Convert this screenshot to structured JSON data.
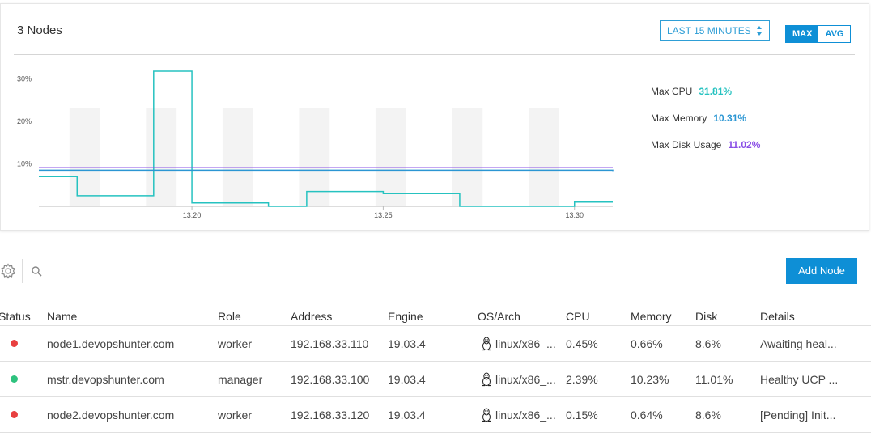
{
  "panel": {
    "title": "3 Nodes",
    "range_select": "LAST 15 MINUTES",
    "toggle": {
      "max": "MAX",
      "avg": "AVG",
      "selected": "MAX"
    }
  },
  "legend": [
    {
      "label": "Max CPU",
      "value": "31.81%",
      "color": "#26c2c0"
    },
    {
      "label": "Max Memory",
      "value": "10.31%",
      "color": "#2b96d3"
    },
    {
      "label": "Max Disk Usage",
      "value": "11.02%",
      "color": "#8a4fe6"
    }
  ],
  "chart_data": {
    "type": "line",
    "y_tick_labels": [
      "30%",
      "20%",
      "10%"
    ],
    "x_tick_labels": [
      "13:20",
      "13:25",
      "13:30"
    ],
    "ylim": [
      0,
      32
    ],
    "xlim": [
      "13:16",
      "13:31"
    ],
    "grid": "alternating vertical bands",
    "series": [
      {
        "name": "CPU",
        "color": "#26c2c0",
        "x": [
          "13:16",
          "13:17",
          "13:18",
          "13:19",
          "13:20",
          "13:21",
          "13:22",
          "13:23",
          "13:24",
          "13:25",
          "13:26",
          "13:27",
          "13:28",
          "13:29",
          "13:30",
          "13:31"
        ],
        "values": [
          7.0,
          2.5,
          2.5,
          31.8,
          0.8,
          0.8,
          0.0,
          3.5,
          3.5,
          3.0,
          3.0,
          0.0,
          0.0,
          0.0,
          1.0,
          1.0
        ]
      },
      {
        "name": "Memory",
        "color": "#2b96d3",
        "x": [
          "13:16",
          "13:31"
        ],
        "values": [
          8.5,
          8.3
        ]
      },
      {
        "name": "Disk Usage",
        "color": "#8a4fe6",
        "x": [
          "13:16",
          "13:31"
        ],
        "values": [
          9.2,
          9.2
        ]
      }
    ]
  },
  "toolbar": {
    "add_node": "Add Node"
  },
  "table": {
    "columns": [
      "Status",
      "Name",
      "Role",
      "Address",
      "Engine",
      "OS/Arch",
      "CPU",
      "Memory",
      "Disk",
      "Details"
    ],
    "rows": [
      {
        "status_color": "#e84040",
        "name": "node1.devopshunter.com",
        "role": "worker",
        "address": "192.168.33.110",
        "engine": "19.03.4",
        "os": "linux/x86_...",
        "cpu": "0.45%",
        "memory": "0.66%",
        "disk": "8.6%",
        "details": "Awaiting heal..."
      },
      {
        "status_color": "#2ec27e",
        "name": "mstr.devopshunter.com",
        "role": "manager",
        "address": "192.168.33.100",
        "engine": "19.03.4",
        "os": "linux/x86_...",
        "cpu": "2.39%",
        "memory": "10.23%",
        "disk": "11.01%",
        "details": "Healthy UCP ..."
      },
      {
        "status_color": "#e84040",
        "name": "node2.devopshunter.com",
        "role": "worker",
        "address": "192.168.33.120",
        "engine": "19.03.4",
        "os": "linux/x86_...",
        "cpu": "0.15%",
        "memory": "0.64%",
        "disk": "8.6%",
        "details": "[Pending] Init..."
      }
    ]
  }
}
